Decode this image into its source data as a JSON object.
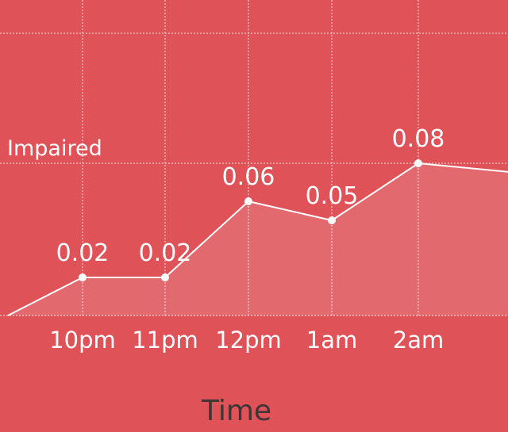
{
  "colors": {
    "background": "#de5258",
    "line": "#ffffff",
    "fill": "#ffffff",
    "grid": "#f4b2b4",
    "title_text": "#3e3535"
  },
  "chart_data": {
    "type": "area",
    "xlabel": "Time",
    "ylabel": "",
    "grid": true,
    "ylim": [
      0,
      0.12
    ],
    "x_ticks": [
      "10pm",
      "11pm",
      "12pm",
      "1am",
      "2am"
    ],
    "reference_line": {
      "label": "Impaired",
      "value": 0.08
    },
    "series": [
      {
        "points": [
          {
            "x": "",
            "y": 0.0,
            "labeled": false,
            "marker": false
          },
          {
            "x": "10pm",
            "y": 0.02,
            "label": "0.02",
            "labeled": true,
            "marker": true
          },
          {
            "x": "11pm",
            "y": 0.02,
            "label": "0.02",
            "labeled": true,
            "marker": true
          },
          {
            "x": "12pm",
            "y": 0.06,
            "label": "0.06",
            "labeled": true,
            "marker": true
          },
          {
            "x": "1am",
            "y": 0.05,
            "label": "0.05",
            "labeled": true,
            "marker": true
          },
          {
            "x": "2am",
            "y": 0.08,
            "label": "0.08",
            "labeled": true,
            "marker": true
          },
          {
            "x": "",
            "y": 0.0755,
            "labeled": false,
            "marker": false
          }
        ]
      }
    ]
  }
}
